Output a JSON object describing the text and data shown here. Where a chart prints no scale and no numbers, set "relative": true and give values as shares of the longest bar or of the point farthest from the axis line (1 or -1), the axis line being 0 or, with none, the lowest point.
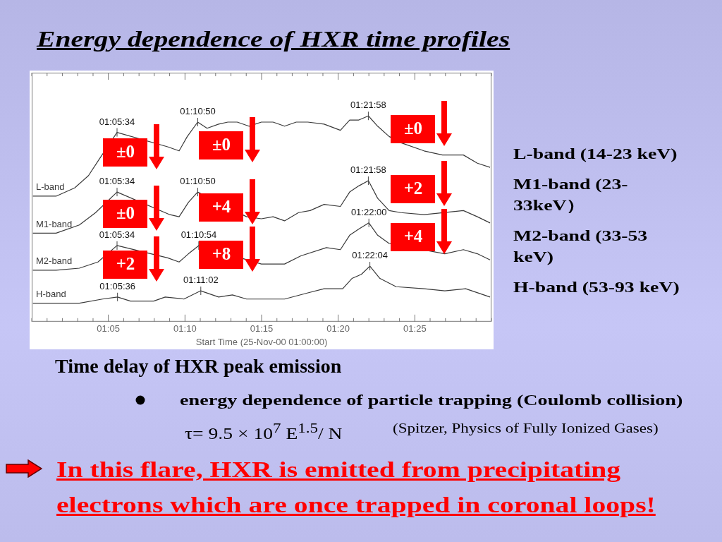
{
  "chart_data": {
    "type": "line",
    "title": "Energy dependence of HXR time profiles",
    "xlabel": "Start Time (25-Nov-00 01:00:00)",
    "relative": true,
    "marker": "none",
    "line_style": "solid",
    "xlim": [
      1,
      1.5
    ],
    "xticks": [
      {
        "value": 1,
        "label": null
      },
      {
        "value": 1.0167,
        "label": null
      },
      {
        "value": 1.0333,
        "label": null
      },
      {
        "value": 1.05,
        "label": null
      },
      {
        "value": 1.0667,
        "label": null
      },
      {
        "value": 1.0833,
        "label": "01:05"
      },
      {
        "value": 1.1,
        "label": null
      },
      {
        "value": 1.1167,
        "label": null
      },
      {
        "value": 1.1333,
        "label": null
      },
      {
        "value": 1.15,
        "label": null
      },
      {
        "value": 1.1667,
        "label": "01:10"
      },
      {
        "value": 1.1833,
        "label": null
      },
      {
        "value": 1.2,
        "label": null
      },
      {
        "value": 1.2167,
        "label": null
      },
      {
        "value": 1.2333,
        "label": null
      },
      {
        "value": 1.25,
        "label": "01:15"
      },
      {
        "value": 1.2667,
        "label": null
      },
      {
        "value": 1.2833,
        "label": null
      },
      {
        "value": 1.3,
        "label": null
      },
      {
        "value": 1.3167,
        "label": null
      },
      {
        "value": 1.3333,
        "label": "01:20"
      },
      {
        "value": 1.35,
        "label": null
      },
      {
        "value": 1.3667,
        "label": null
      },
      {
        "value": 1.3833,
        "label": null
      },
      {
        "value": 1.4,
        "label": null
      },
      {
        "value": 1.4167,
        "label": "01:25"
      },
      {
        "value": 1.4333,
        "label": null
      },
      {
        "value": 1.45,
        "label": null
      },
      {
        "value": 1.4667,
        "label": null
      },
      {
        "value": 1.4833,
        "label": null
      },
      {
        "value": 1.5,
        "label": null
      }
    ],
    "series": [
      {
        "name": "L-band",
        "color": "#3a3a3a",
        "x": [
          1.0013,
          1.0265,
          1.0467,
          1.0618,
          1.072,
          1.0928,
          1.1478,
          1.1603,
          1.1692,
          1.1805,
          1.1907,
          1.2033,
          1.2133,
          1.2235,
          1.2362,
          1.2498,
          1.2625,
          1.275,
          1.2877,
          1.3003,
          1.318,
          1.3357,
          1.3458,
          1.3558,
          1.3662,
          1.3762,
          1.3887,
          1.4013,
          1.4267,
          1.4467,
          1.4695,
          1.4847,
          1.4985
        ],
        "values": [
          0.61,
          0.61,
          0.65,
          0.71,
          0.78,
          0.92,
          0.85,
          0.83,
          0.9,
          0.97,
          0.94,
          0.96,
          0.97,
          0.97,
          0.95,
          0.97,
          0.97,
          0.95,
          0.97,
          0.97,
          0.96,
          0.93,
          0.98,
          0.98,
          1.0,
          0.95,
          0.9,
          0.87,
          0.83,
          0.81,
          0.81,
          0.77,
          0.75
        ]
      },
      {
        "name": "M1-band",
        "color": "#3a3a3a",
        "x": [
          1.0013,
          1.0265,
          1.0518,
          1.0695,
          1.0928,
          1.1503,
          1.1603,
          1.1705,
          1.1805,
          1.2337,
          1.2498,
          1.2625,
          1.275,
          1.2902,
          1.3028,
          1.318,
          1.3357,
          1.3458,
          1.3558,
          1.3662,
          1.3762,
          1.3887,
          1.4013,
          1.4267,
          1.4695,
          1.4847,
          1.4985
        ],
        "values": [
          0.43,
          0.43,
          0.47,
          0.53,
          0.63,
          0.52,
          0.51,
          0.58,
          0.63,
          0.51,
          0.5,
          0.51,
          0.49,
          0.53,
          0.54,
          0.57,
          0.56,
          0.63,
          0.66,
          0.685,
          0.6,
          0.54,
          0.53,
          0.52,
          0.54,
          0.51,
          0.48
        ]
      },
      {
        "name": "M2-band",
        "color": "#3a3a3a",
        "x": [
          1.0013,
          1.0265,
          1.0518,
          1.072,
          1.0928,
          1.1478,
          1.1603,
          1.1705,
          1.1817,
          1.2498,
          1.275,
          1.2928,
          1.3205,
          1.3357,
          1.3458,
          1.3558,
          1.3667,
          1.3762,
          1.3887,
          1.4493,
          1.4695,
          1.4847,
          1.4985
        ],
        "values": [
          0.25,
          0.25,
          0.26,
          0.29,
          0.37,
          0.31,
          0.29,
          0.33,
          0.37,
          0.28,
          0.28,
          0.32,
          0.36,
          0.35,
          0.42,
          0.45,
          0.48,
          0.42,
          0.38,
          0.33,
          0.35,
          0.33,
          0.3
        ]
      },
      {
        "name": "H-band",
        "color": "#3a3a3a",
        "x": [
          1.0013,
          1.0265,
          1.0518,
          1.077,
          1.0933,
          1.1073,
          1.1327,
          1.1452,
          1.1655,
          1.1838,
          1.2033,
          1.2183,
          1.2337,
          1.2498,
          1.275,
          1.3003,
          1.318,
          1.3382,
          1.3483,
          1.3585,
          1.3678,
          1.3787,
          1.3963,
          1.4267,
          1.4493,
          1.472,
          1.4985
        ],
        "values": [
          0.09,
          0.09,
          0.09,
          0.11,
          0.12,
          0.1,
          0.1,
          0.12,
          0.11,
          0.15,
          0.12,
          0.13,
          0.11,
          0.11,
          0.11,
          0.14,
          0.16,
          0.16,
          0.21,
          0.23,
          0.27,
          0.21,
          0.17,
          0.16,
          0.15,
          0.16,
          0.12
        ]
      }
    ],
    "annotations": [
      {
        "text": "01:05:34",
        "x": 1.0928,
        "y": 0.92
      },
      {
        "text": "01:10:50",
        "x": 1.1806,
        "y": 0.97
      },
      {
        "text": "01:21:58",
        "x": 1.3661,
        "y": 1.0
      },
      {
        "text": "01:05:34",
        "x": 1.0928,
        "y": 0.63
      },
      {
        "text": "01:10:50",
        "x": 1.1806,
        "y": 0.63
      },
      {
        "text": "01:21:58",
        "x": 1.3661,
        "y": 0.685
      },
      {
        "text": "01:05:34",
        "x": 1.0928,
        "y": 0.37
      },
      {
        "text": "01:10:54",
        "x": 1.1817,
        "y": 0.37
      },
      {
        "text": "01:22:00",
        "x": 1.3667,
        "y": 0.48
      },
      {
        "text": "01:05:36",
        "x": 1.0933,
        "y": 0.12
      },
      {
        "text": "01:11:02",
        "x": 1.1839,
        "y": 0.15
      },
      {
        "text": "01:22:04",
        "x": 1.3678,
        "y": 0.27
      },
      "±0",
      "±0",
      "+2",
      "±0",
      "+4",
      "+8",
      "±0",
      "+2",
      "+4",
      "L-band (14-23 keV)",
      "M1-band (23-33keV）",
      "M2-band (33-53 keV)",
      "H-band (53-93 keV)",
      "Time delay of HXR peak emission",
      "energy dependence of particle trapping (Coulomb collision)",
      "τ= 9.5 × 10$^{7}$ E$^{1.5}$/ N",
      "(Spitzer, Physics of  Fully Ionized Gases)",
      "In this flare, HXR is emitted from precipitating electrons which are once trapped in coronal loops!"
    ]
  }
}
